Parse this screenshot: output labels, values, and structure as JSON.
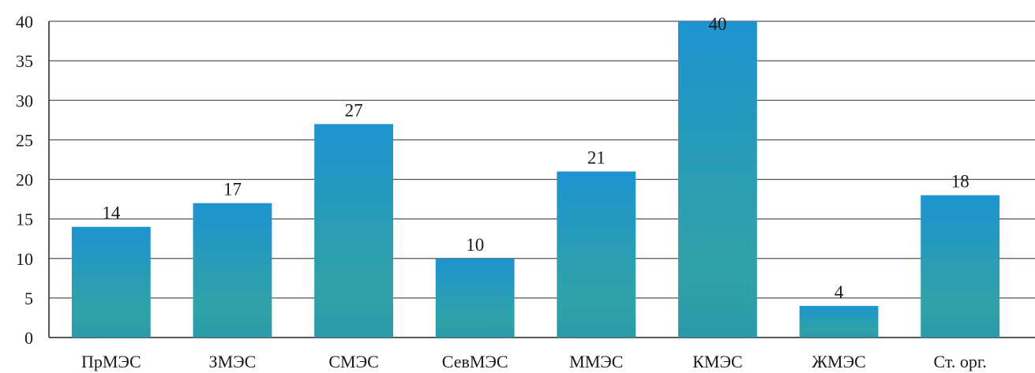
{
  "chart_data": {
    "type": "bar",
    "categories": [
      "ПрМЭС",
      "ЗМЭС",
      "СМЭС",
      "СевМЭС",
      "ММЭС",
      "КМЭС",
      "ЖМЭС",
      "Ст. орг."
    ],
    "values": [
      14,
      17,
      27,
      10,
      21,
      40,
      4,
      18
    ],
    "ylim": [
      0,
      40
    ],
    "yticks": [
      0,
      5,
      10,
      15,
      20,
      25,
      30,
      35,
      40
    ],
    "grid": true,
    "bar_color": "#1f93c9",
    "bar_color_alt": "#2ea3a6"
  }
}
